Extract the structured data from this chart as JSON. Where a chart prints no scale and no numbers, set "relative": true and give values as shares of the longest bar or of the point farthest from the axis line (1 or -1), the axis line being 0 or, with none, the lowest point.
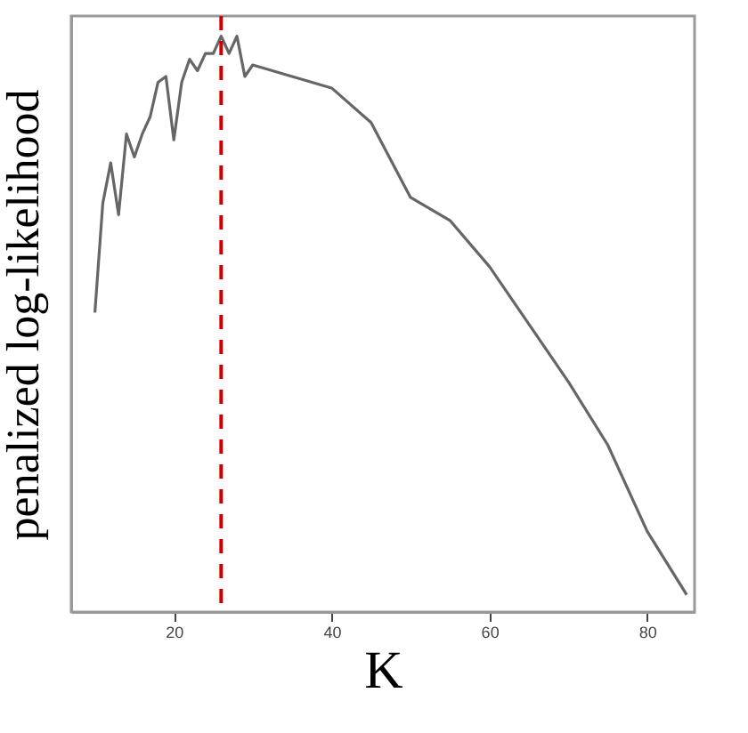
{
  "chart_data": {
    "type": "line",
    "xlabel": "K",
    "ylabel": "penalized log-likelihood",
    "relative": true,
    "tick_labels": "x",
    "x": [
      10,
      11,
      12,
      13,
      14,
      15,
      16,
      17,
      18,
      19,
      20,
      21,
      22,
      23,
      24,
      25,
      26,
      27,
      28,
      29,
      30,
      35,
      40,
      45,
      50,
      55,
      60,
      65,
      70,
      75,
      80,
      85
    ],
    "series": [
      {
        "color": "#666666",
        "values": [
          0.52,
          0.71,
          0.78,
          0.69,
          0.83,
          0.79,
          0.83,
          0.86,
          0.92,
          0.93,
          0.82,
          0.92,
          0.96,
          0.94,
          0.97,
          0.97,
          1.0,
          0.97,
          1.0,
          0.93,
          0.95,
          0.93,
          0.91,
          0.85,
          0.72,
          0.68,
          0.6,
          0.5,
          0.4,
          0.29,
          0.14,
          0.03
        ]
      }
    ],
    "xlim": [
      7,
      86
    ],
    "xticks": [
      20,
      40,
      60,
      80
    ],
    "ref_lines": [
      {
        "axis": "x",
        "value": 26,
        "color": "#cc0000",
        "line_style": "dashed"
      }
    ],
    "grid": false,
    "marker": "none",
    "line_style": "solid"
  }
}
